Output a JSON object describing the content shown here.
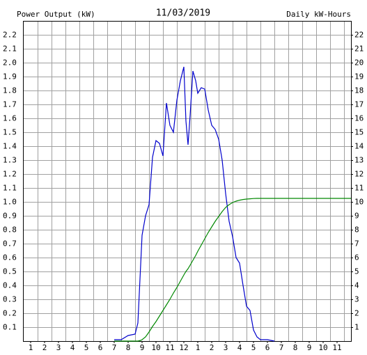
{
  "chart_data": {
    "type": "line",
    "title": "11/03/2019",
    "y_label": "Power Output (kW)",
    "y2_label": "Daily kW-Hours",
    "x": [
      7,
      7.5,
      8,
      8.5,
      8.7,
      8.9,
      9,
      9.25,
      9.5,
      9.75,
      10,
      10.25,
      10.5,
      10.75,
      11,
      11.25,
      11.5,
      11.75,
      12,
      12.15,
      12.3,
      12.45,
      12.65,
      12.85,
      13,
      13.25,
      13.5,
      13.75,
      14,
      14.25,
      14.5,
      14.75,
      15,
      15.25,
      15.5,
      15.75,
      16,
      16.25,
      16.5,
      16.75,
      17,
      17.25,
      17.5,
      18,
      18.5,
      19,
      20,
      21,
      22,
      23,
      24
    ],
    "series": [
      {
        "name": "Power Output",
        "color": "#0000cc",
        "values": [
          0.01,
          0.01,
          0.04,
          0.05,
          0.13,
          0.55,
          0.76,
          0.9,
          0.98,
          1.32,
          1.44,
          1.42,
          1.33,
          1.71,
          1.55,
          1.5,
          1.73,
          1.87,
          1.97,
          1.58,
          1.41,
          1.62,
          1.94,
          1.87,
          1.78,
          1.82,
          1.81,
          1.66,
          1.55,
          1.52,
          1.45,
          1.3,
          1.06,
          0.86,
          0.75,
          0.6,
          0.56,
          0.4,
          0.25,
          0.22,
          0.08,
          0.03,
          0.01,
          0.01,
          0,
          null,
          null,
          null,
          null,
          null,
          null
        ]
      },
      {
        "name": "Daily kW-Hours",
        "color": "#008800",
        "axis": "y2",
        "values": [
          0,
          0,
          0,
          0,
          0,
          0.05,
          0.1,
          0.3,
          0.65,
          1.05,
          1.4,
          1.8,
          2.2,
          2.6,
          3.0,
          3.45,
          3.85,
          4.3,
          4.75,
          5.0,
          5.2,
          5.45,
          5.8,
          6.15,
          6.45,
          6.9,
          7.35,
          7.8,
          8.2,
          8.6,
          8.95,
          9.3,
          9.6,
          9.8,
          9.95,
          10.05,
          10.12,
          10.17,
          10.2,
          10.22,
          10.24,
          10.25,
          10.25,
          10.25,
          10.25,
          10.25,
          10.25,
          10.25,
          10.25,
          10.25,
          10.25
        ]
      }
    ],
    "xlim": [
      0.5,
      24
    ],
    "xticks": [
      1,
      2,
      3,
      4,
      5,
      6,
      7,
      8,
      9,
      10,
      11,
      12,
      {
        "value": 13,
        "label": "1"
      },
      {
        "value": 14,
        "label": "2"
      },
      {
        "value": 15,
        "label": "3"
      },
      {
        "value": 16,
        "label": "4"
      },
      {
        "value": 17,
        "label": "5"
      },
      {
        "value": 18,
        "label": "6"
      },
      {
        "value": 19,
        "label": "7"
      },
      {
        "value": 20,
        "label": "8"
      },
      {
        "value": 21,
        "label": "9"
      },
      {
        "value": 22,
        "label": "10"
      },
      {
        "value": 23,
        "label": "11"
      }
    ],
    "ylim": [
      0,
      2.3
    ],
    "yticks": [
      0.1,
      0.2,
      0.3,
      0.4,
      0.5,
      0.6,
      0.7,
      0.8,
      0.9,
      {
        "value": 1,
        "label": "1.0"
      },
      1.1,
      1.2,
      1.3,
      1.4,
      1.5,
      1.6,
      1.7,
      1.8,
      1.9,
      {
        "value": 2,
        "label": "2.0"
      },
      2.1,
      2.2
    ],
    "y2lim": [
      0,
      23
    ],
    "y2ticks": [
      1,
      2,
      3,
      4,
      5,
      6,
      7,
      8,
      9,
      10,
      11,
      12,
      13,
      14,
      15,
      16,
      17,
      18,
      19,
      20,
      21,
      22
    ],
    "grid": true
  }
}
